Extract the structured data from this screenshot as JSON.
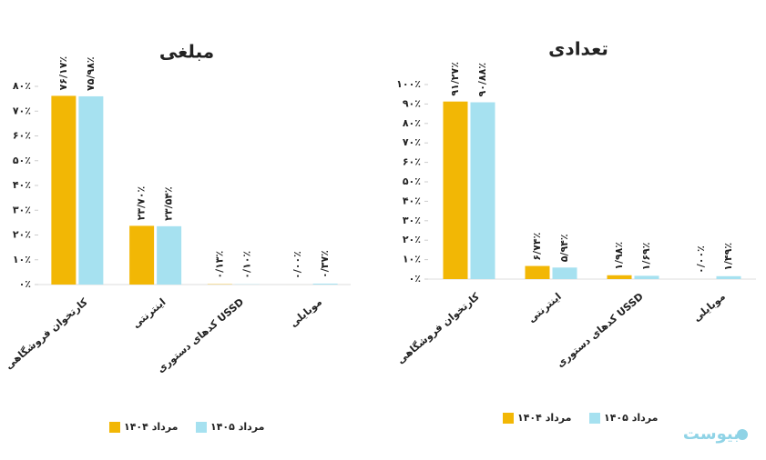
{
  "chart_data": [
    {
      "type": "bar",
      "title": "مبلغی",
      "categories": [
        "کارتخوان فروشگاهی",
        "اینترنتی",
        "کدهای دستوری USSD",
        "موبایلی"
      ],
      "series": [
        {
          "name": "مرداد ۱۴۰۴",
          "color": "#f2b705",
          "values": [
            76.17,
            23.7,
            0.13,
            0.0
          ],
          "value_labels": [
            "۷۶/۱۷٪",
            "۲۳/۷۰٪",
            "۰/۱۳٪",
            "۰/۰۰٪"
          ]
        },
        {
          "name": "مرداد ۱۴۰۵",
          "color": "#a6e1f0",
          "values": [
            75.98,
            23.54,
            0.1,
            0.37
          ],
          "value_labels": [
            "۷۵/۹۸٪",
            "۲۳/۵۴٪",
            "۰/۱۰٪",
            "۰/۳۷٪"
          ]
        }
      ],
      "ylim": [
        0,
        80
      ],
      "yticks": [
        {
          "value": 0,
          "label": "۰٪"
        },
        {
          "value": 10,
          "label": "۱۰٪"
        },
        {
          "value": 20,
          "label": "۲۰٪"
        },
        {
          "value": 30,
          "label": "۳۰٪"
        },
        {
          "value": 40,
          "label": "۴۰٪"
        },
        {
          "value": 50,
          "label": "۵۰٪"
        },
        {
          "value": 60,
          "label": "۶۰٪"
        },
        {
          "value": 70,
          "label": "۷۰٪"
        },
        {
          "value": 80,
          "label": "۸۰٪"
        }
      ]
    },
    {
      "type": "bar",
      "title": "تعدادی",
      "categories": [
        "کارتخوان فروشگاهی",
        "اینترنتی",
        "کدهای دستوری USSD",
        "موبایلی"
      ],
      "series": [
        {
          "name": "مرداد ۱۴۰۴",
          "color": "#f2b705",
          "values": [
            91.27,
            6.74,
            1.98,
            0.0
          ],
          "value_labels": [
            "۹۱/۲۷٪",
            "۶/۷۴٪",
            "۱/۹۸٪",
            "۰/۰۰٪"
          ]
        },
        {
          "name": "مرداد ۱۴۰۵",
          "color": "#a6e1f0",
          "values": [
            90.88,
            5.94,
            1.69,
            1.49
          ],
          "value_labels": [
            "۹۰/۸۸٪",
            "۵/۹۴٪",
            "۱/۶۹٪",
            "۱/۴۹٪"
          ]
        }
      ],
      "ylim": [
        0,
        100
      ],
      "yticks": [
        {
          "value": 0,
          "label": "۰٪"
        },
        {
          "value": 10,
          "label": "۱۰٪"
        },
        {
          "value": 20,
          "label": "۲۰٪"
        },
        {
          "value": 30,
          "label": "۳۰٪"
        },
        {
          "value": 40,
          "label": "۴۰٪"
        },
        {
          "value": 50,
          "label": "۵۰٪"
        },
        {
          "value": 60,
          "label": "۶۰٪"
        },
        {
          "value": 70,
          "label": "۷۰٪"
        },
        {
          "value": 80,
          "label": "۸۰٪"
        },
        {
          "value": 90,
          "label": "۹۰٪"
        },
        {
          "value": 100,
          "label": "۱۰۰٪"
        }
      ]
    }
  ],
  "watermark": "بیوست"
}
